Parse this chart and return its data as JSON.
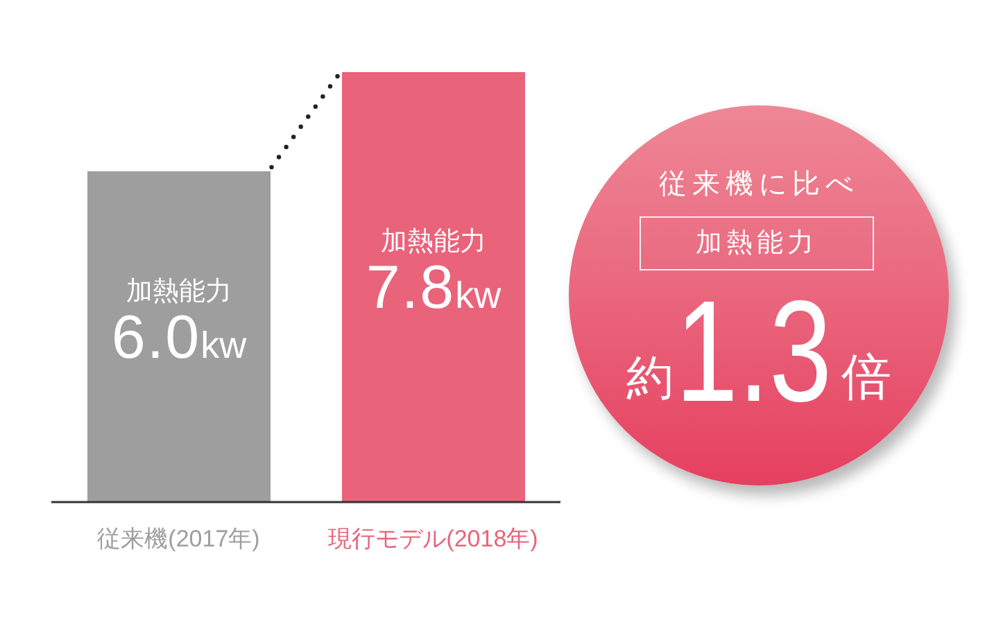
{
  "chart_data": {
    "type": "bar",
    "categories": [
      "従来機(2017年)",
      "現行モデル(2018年)"
    ],
    "values": [
      6.0,
      7.8
    ],
    "colors": [
      "#9e9e9e",
      "#e9637a"
    ],
    "value_labels": [
      "加熱能力\n6.0kw",
      "加熱能力\n7.8kw"
    ],
    "annotations": [
      "従来機に比べ",
      "加熱能力",
      "約1.3倍"
    ]
  }
}
